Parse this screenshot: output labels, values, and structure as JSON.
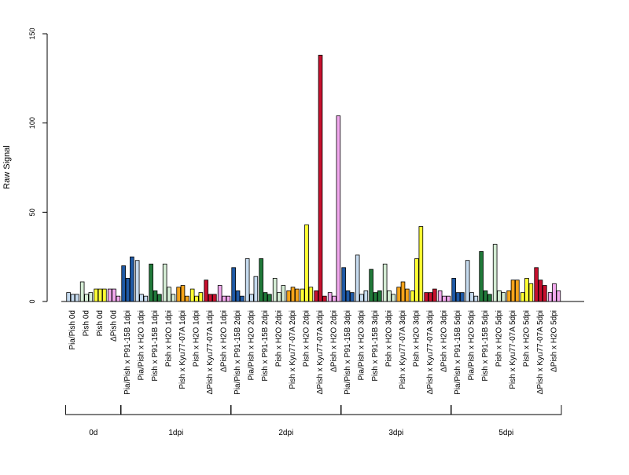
{
  "chart_data": {
    "type": "bar",
    "ylabel": "Raw Signal",
    "ylim": [
      0,
      150
    ],
    "yticks": [
      0,
      50,
      100,
      150
    ],
    "replicates_per_category": 3,
    "colors": {
      "Pia/Pish": "#1f5aa6",
      "Pia/Pish x H2O": "#c6dbef",
      "Pish x P91-15B": "#217a3a",
      "Pish x H2O": "#d5edd5",
      "Pish x Kyu77-07A": "#f5a31a",
      "Pish x H2O (Kyu)": "#ffff33",
      "ΔPish x Kyu77-07A": "#c8102e",
      "ΔPish x H2O": "#f2a9ee"
    },
    "groups": [
      {
        "label": "0d",
        "categories": [
          {
            "name": "Pia/Pish 0d",
            "color": "#c6dbef",
            "values": [
              5,
              4,
              4
            ]
          },
          {
            "name": "Pish 0d",
            "color": "#d5edd5",
            "values": [
              11,
              4,
              5
            ]
          },
          {
            "name": "Pish 0d",
            "color": "#ffff33",
            "values": [
              7,
              7,
              7
            ]
          },
          {
            "name": "ΔPish 0d",
            "color": "#f2a9ee",
            "values": [
              7,
              7,
              3
            ]
          }
        ]
      },
      {
        "label": "1dpi",
        "categories": [
          {
            "name": "Pia/Pish x P91-15B 1dpi",
            "color": "#1f5aa6",
            "values": [
              20,
              13,
              25
            ]
          },
          {
            "name": "Pia/Pish x H2O 1dpi",
            "color": "#c6dbef",
            "values": [
              23,
              4,
              3
            ]
          },
          {
            "name": "Pish x P91-15B 1dpi",
            "color": "#217a3a",
            "values": [
              21,
              6,
              4
            ]
          },
          {
            "name": "Pish x H2O 1dpi",
            "color": "#d5edd5",
            "values": [
              21,
              8,
              4
            ]
          },
          {
            "name": "Pish x Kyu77-07A 1dpi",
            "color": "#f5a31a",
            "values": [
              8,
              9,
              3
            ]
          },
          {
            "name": "Pish x H2O 1dpi",
            "color": "#ffff33",
            "values": [
              7,
              3,
              5
            ]
          },
          {
            "name": "ΔPish x Kyu77-07A 1dpi",
            "color": "#c8102e",
            "values": [
              12,
              4,
              4
            ]
          },
          {
            "name": "ΔPish x H2O 1dpi",
            "color": "#f2a9ee",
            "values": [
              9,
              3,
              3
            ]
          }
        ]
      },
      {
        "label": "2dpi",
        "categories": [
          {
            "name": "Pia/Pish x P91-15B 2dpi",
            "color": "#1f5aa6",
            "values": [
              19,
              6,
              3
            ]
          },
          {
            "name": "Pia/Pish x H2O 2dpi",
            "color": "#c6dbef",
            "values": [
              24,
              4,
              14
            ]
          },
          {
            "name": "Pish x P91-15B 2dpi",
            "color": "#217a3a",
            "values": [
              24,
              5,
              4
            ]
          },
          {
            "name": "Pish x H2O 2dpi",
            "color": "#d5edd5",
            "values": [
              13,
              5,
              9
            ]
          },
          {
            "name": "Pish x Kyu77-07A 2dpi",
            "color": "#f5a31a",
            "values": [
              6,
              8,
              7
            ]
          },
          {
            "name": "Pish x H2O 2dpi",
            "color": "#ffff33",
            "values": [
              7,
              43,
              8
            ]
          },
          {
            "name": "ΔPish x Kyu77-07A 2dpi",
            "color": "#c8102e",
            "values": [
              6,
              138,
              3
            ]
          },
          {
            "name": "ΔPish x H2O 2dpi",
            "color": "#f2a9ee",
            "values": [
              5,
              3,
              104
            ]
          }
        ]
      },
      {
        "label": "3dpi",
        "categories": [
          {
            "name": "Pia/Pish x P91-15B 3dpi",
            "color": "#1f5aa6",
            "values": [
              19,
              6,
              5
            ]
          },
          {
            "name": "Pia/Pish x H2O 3dpi",
            "color": "#c6dbef",
            "values": [
              26,
              4,
              6
            ]
          },
          {
            "name": "Pish x P91-15B 3dpi",
            "color": "#217a3a",
            "values": [
              18,
              5,
              6
            ]
          },
          {
            "name": "Pish x H2O 3dpi",
            "color": "#d5edd5",
            "values": [
              21,
              6,
              4
            ]
          },
          {
            "name": "Pish x Kyu77-07A 3dpi",
            "color": "#f5a31a",
            "values": [
              8,
              11,
              7
            ]
          },
          {
            "name": "Pish x H2O 3dpi",
            "color": "#ffff33",
            "values": [
              6,
              24,
              42
            ]
          },
          {
            "name": "ΔPish x Kyu77-07A 3dpi",
            "color": "#c8102e",
            "values": [
              5,
              5,
              7
            ]
          },
          {
            "name": "ΔPish x H2O 3dpi",
            "color": "#f2a9ee",
            "values": [
              6,
              3,
              3
            ]
          }
        ]
      },
      {
        "label": "5dpi",
        "categories": [
          {
            "name": "Pia/Pish x P91-15B 5dpi",
            "color": "#1f5aa6",
            "values": [
              13,
              5,
              5
            ]
          },
          {
            "name": "Pia/Pish x H2O 5dpi",
            "color": "#c6dbef",
            "values": [
              23,
              5,
              3
            ]
          },
          {
            "name": "Pish x P91-15B 5dpi",
            "color": "#217a3a",
            "values": [
              28,
              6,
              4
            ]
          },
          {
            "name": "Pish x H2O 5dpi",
            "color": "#d5edd5",
            "values": [
              32,
              6,
              5
            ]
          },
          {
            "name": "Pish x Kyu77-07A 5dpi",
            "color": "#f5a31a",
            "values": [
              6,
              12,
              12
            ]
          },
          {
            "name": "Pish x H2O 5dpi",
            "color": "#ffff33",
            "values": [
              5,
              13,
              10
            ]
          },
          {
            "name": "ΔPish x Kyu77-07A 5dpi",
            "color": "#c8102e",
            "values": [
              19,
              12,
              9
            ]
          },
          {
            "name": "ΔPish x H2O 5dpi",
            "color": "#f2a9ee",
            "values": [
              5,
              10,
              6
            ]
          }
        ]
      }
    ]
  }
}
